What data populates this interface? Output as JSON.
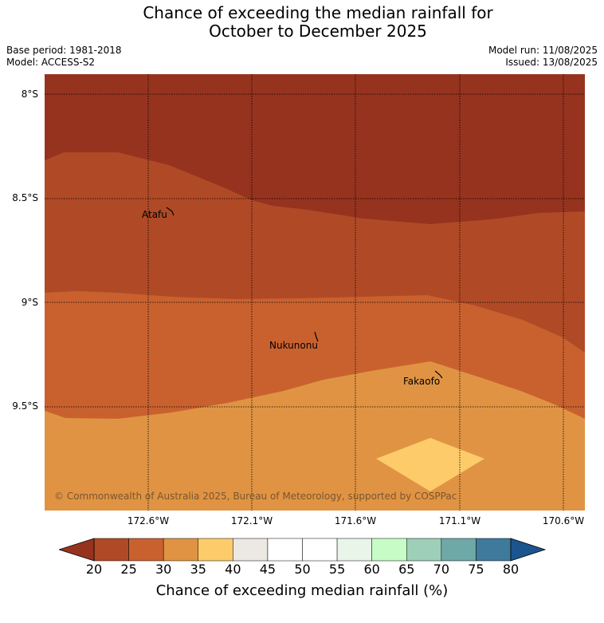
{
  "title": {
    "line1": "Chance of exceeding the median rainfall for",
    "line2": "October to December 2025"
  },
  "header": {
    "base_period": "Base period: 1981-2018",
    "model": "Model: ACCESS-S2",
    "model_run": "Model run: 11/08/2025",
    "issued": "Issued: 13/08/2025"
  },
  "map": {
    "lat_labels": [
      "8°S",
      "8.5°S",
      "9°S",
      "9.5°S"
    ],
    "lon_labels": [
      "172.6°W",
      "172.1°W",
      "171.6°W",
      "171.1°W",
      "170.6°W"
    ],
    "places": [
      {
        "name": "Atafu"
      },
      {
        "name": "Nukunonu"
      },
      {
        "name": "Fakaofo"
      }
    ],
    "copyright": "© Commonwealth of Australia 2025, Bureau of Meteorology, supported by COSPPac",
    "region_colors": {
      "20_25": "#96331f",
      "25_30": "#b04a26",
      "30_35": "#c9612f",
      "35_40": "#e09443",
      "40_45": "#fdcb6a"
    }
  },
  "colorbar": {
    "ticks": [
      "20",
      "25",
      "30",
      "35",
      "40",
      "45",
      "50",
      "55",
      "60",
      "65",
      "70",
      "75",
      "80"
    ],
    "colors": [
      "#b04a26",
      "#c9612f",
      "#e09443",
      "#fdcb6a",
      "#ece9e4",
      "#ffffff",
      "#ffffff",
      "#eaf5ea",
      "#c8fcc6",
      "#9ecfb8",
      "#6ea8a7",
      "#3f7a9c"
    ],
    "under_color": "#96331f",
    "over_color": "#1b5590",
    "label": "Chance of exceeding median rainfall (%)"
  }
}
